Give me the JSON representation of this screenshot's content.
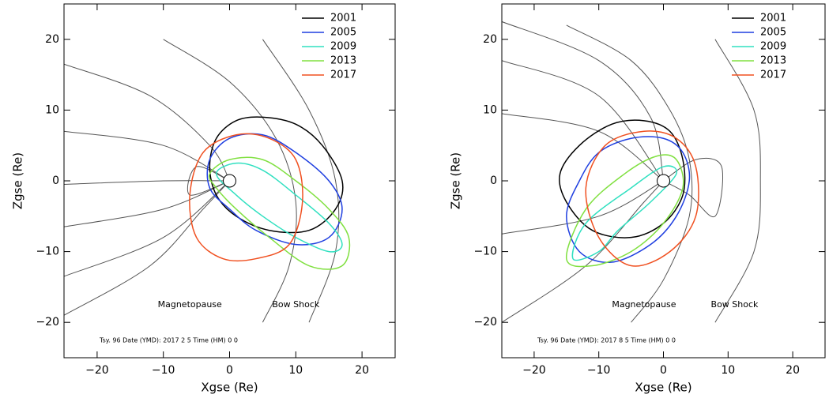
{
  "chart_data": [
    {
      "type": "line",
      "xlabel": "Xgse (Re)",
      "ylabel": "Zgse (Re)",
      "annotation": "Tsy. 96  Date (YMD): 2017 2 5    Time (HM) 0 0",
      "xlim": [
        -25,
        25
      ],
      "ylim": [
        -25,
        25
      ],
      "xticks": [
        {
          "value": -20,
          "label": "−20"
        },
        {
          "value": -10,
          "label": "−10"
        },
        0,
        10,
        20
      ],
      "yticks": [
        {
          "value": -20,
          "label": "−20"
        },
        {
          "value": -10,
          "label": "−10"
        },
        0,
        10,
        20
      ],
      "legend": "upper right",
      "series": [
        {
          "name": "2001",
          "color": "#000000",
          "x": [
            -3,
            -2,
            1,
            5,
            10,
            14,
            17,
            16,
            12,
            6,
            1,
            -2
          ],
          "y": [
            2,
            6,
            8.5,
            9,
            8,
            5,
            0,
            -4,
            -7,
            -7,
            -5,
            -2
          ]
        },
        {
          "name": "2005",
          "color": "#1f3fe0",
          "x": [
            -3,
            0,
            5,
            10,
            15,
            17,
            15,
            10,
            4,
            0,
            -3
          ],
          "y": [
            3,
            6,
            6.5,
            4,
            0,
            -4,
            -8,
            -9,
            -7,
            -4,
            -1
          ]
        },
        {
          "name": "2009",
          "color": "#30e0c0",
          "x": [
            -2,
            1,
            5,
            10,
            15,
            17,
            15,
            10,
            5,
            1
          ],
          "y": [
            1,
            2.5,
            1.5,
            -2,
            -6,
            -9,
            -10,
            -8,
            -5,
            -2
          ]
        },
        {
          "name": "2013",
          "color": "#80e040",
          "x": [
            -3,
            0,
            5,
            10,
            15,
            18,
            17,
            12,
            6,
            1,
            -2
          ],
          "y": [
            1,
            3,
            3,
            0,
            -4,
            -8,
            -12,
            -12,
            -8,
            -4,
            -1
          ]
        },
        {
          "name": "2017",
          "color": "#f05020",
          "x": [
            -6,
            -4,
            1,
            6,
            10,
            11,
            9,
            4,
            -1,
            -5
          ],
          "y": [
            -2,
            4,
            6.5,
            6,
            3,
            -3,
            -9,
            -11,
            -11,
            -8
          ]
        }
      ],
      "boundaries": [
        {
          "name": "Magnetopause",
          "x": [
            -10,
            0,
            7,
            10,
            9,
            5
          ],
          "y": [
            20,
            14,
            6,
            -3,
            -12,
            -20
          ]
        },
        {
          "name": "Bow Shock",
          "x": [
            5,
            12,
            16,
            16,
            12
          ],
          "y": [
            20,
            10,
            0,
            -10,
            -20
          ]
        }
      ],
      "field_lines": [
        {
          "x": [
            -25,
            -12,
            -3,
            0
          ],
          "y": [
            16.5,
            12,
            5,
            0
          ]
        },
        {
          "x": [
            -25,
            -10,
            0
          ],
          "y": [
            7,
            5,
            0
          ]
        },
        {
          "x": [
            -25,
            -10,
            0
          ],
          "y": [
            -0.5,
            0,
            0
          ]
        },
        {
          "x": [
            -25,
            -10,
            0
          ],
          "y": [
            -6.5,
            -4,
            0
          ]
        },
        {
          "x": [
            -25,
            -10,
            0
          ],
          "y": [
            -13.5,
            -8,
            0
          ]
        },
        {
          "x": [
            -25,
            -12,
            -4,
            0
          ],
          "y": [
            -19,
            -12,
            -4,
            0
          ]
        },
        {
          "x": [
            0,
            -6,
            -5,
            0
          ],
          "y": [
            0,
            -2,
            2,
            0
          ]
        }
      ]
    },
    {
      "type": "line",
      "xlabel": "Xgse (Re)",
      "ylabel": "Zgse (Re)",
      "annotation": "Tsy. 96  Date (YMD): 2017 8 5    Time (HM) 0 0",
      "xlim": [
        -25,
        25
      ],
      "ylim": [
        -25,
        25
      ],
      "xticks": [
        {
          "value": -20,
          "label": "−20"
        },
        {
          "value": -10,
          "label": "−10"
        },
        0,
        10,
        20
      ],
      "yticks": [
        {
          "value": -20,
          "label": "−20"
        },
        {
          "value": -10,
          "label": "−10"
        },
        0,
        10,
        20
      ],
      "legend": "upper right",
      "series": [
        {
          "name": "2001",
          "color": "#000000",
          "x": [
            -13,
            -8,
            -3,
            1,
            3,
            3,
            0,
            -5,
            -11,
            -15,
            -16
          ],
          "y": [
            5,
            8,
            8.5,
            7,
            3,
            -2,
            -6,
            -8,
            -7,
            -3,
            1
          ]
        },
        {
          "name": "2005",
          "color": "#1f3fe0",
          "x": [
            -10,
            -5,
            0,
            3,
            4,
            2,
            -2,
            -8,
            -13,
            -15,
            -13
          ],
          "y": [
            4,
            6,
            6,
            4,
            0,
            -5,
            -9,
            -11.5,
            -10,
            -5,
            0
          ]
        },
        {
          "name": "2009",
          "color": "#30e0c0",
          "x": [
            -10,
            -14,
            -12,
            -5,
            0,
            2,
            -2,
            -7
          ],
          "y": [
            -10,
            -11,
            -6,
            -1,
            2,
            1,
            -3,
            -7
          ]
        },
        {
          "name": "2013",
          "color": "#80e040",
          "x": [
            -15,
            -12,
            -6,
            -1,
            2,
            3,
            0,
            -5,
            -11
          ],
          "y": [
            -11,
            -4,
            1,
            3.5,
            3,
            -1,
            -6,
            -10,
            -12
          ]
        },
        {
          "name": "2017",
          "color": "#f05020",
          "x": [
            -12,
            -9,
            -3,
            2,
            5,
            5,
            1,
            -5,
            -10
          ],
          "y": [
            -1,
            5,
            7,
            6,
            2,
            -5,
            -10,
            -12,
            -8
          ]
        }
      ],
      "boundaries": [
        {
          "name": "Magnetopause",
          "x": [
            -15,
            -5,
            1,
            4,
            4,
            0,
            -5
          ],
          "y": [
            22,
            17,
            10,
            3,
            -5,
            -14,
            -20
          ]
        },
        {
          "name": "Bow Shock",
          "x": [
            8,
            14,
            15,
            14,
            8
          ],
          "y": [
            20,
            10,
            0,
            -10,
            -20
          ]
        }
      ],
      "field_lines": [
        {
          "x": [
            -25,
            -10,
            -2,
            0
          ],
          "y": [
            22.5,
            17,
            9,
            0
          ]
        },
        {
          "x": [
            -25,
            -10,
            0
          ],
          "y": [
            17,
            12,
            0
          ]
        },
        {
          "x": [
            -25,
            -10,
            0
          ],
          "y": [
            9.5,
            7,
            0
          ]
        },
        {
          "x": [
            -25,
            -10,
            0
          ],
          "y": [
            -7.5,
            -5,
            0
          ]
        },
        {
          "x": [
            -25,
            -12,
            -3,
            0
          ],
          "y": [
            -20,
            -12,
            -3,
            0
          ]
        },
        {
          "x": [
            0,
            5,
            9,
            8,
            4,
            0
          ],
          "y": [
            0,
            3,
            2,
            -5,
            -2,
            0
          ]
        }
      ]
    }
  ]
}
